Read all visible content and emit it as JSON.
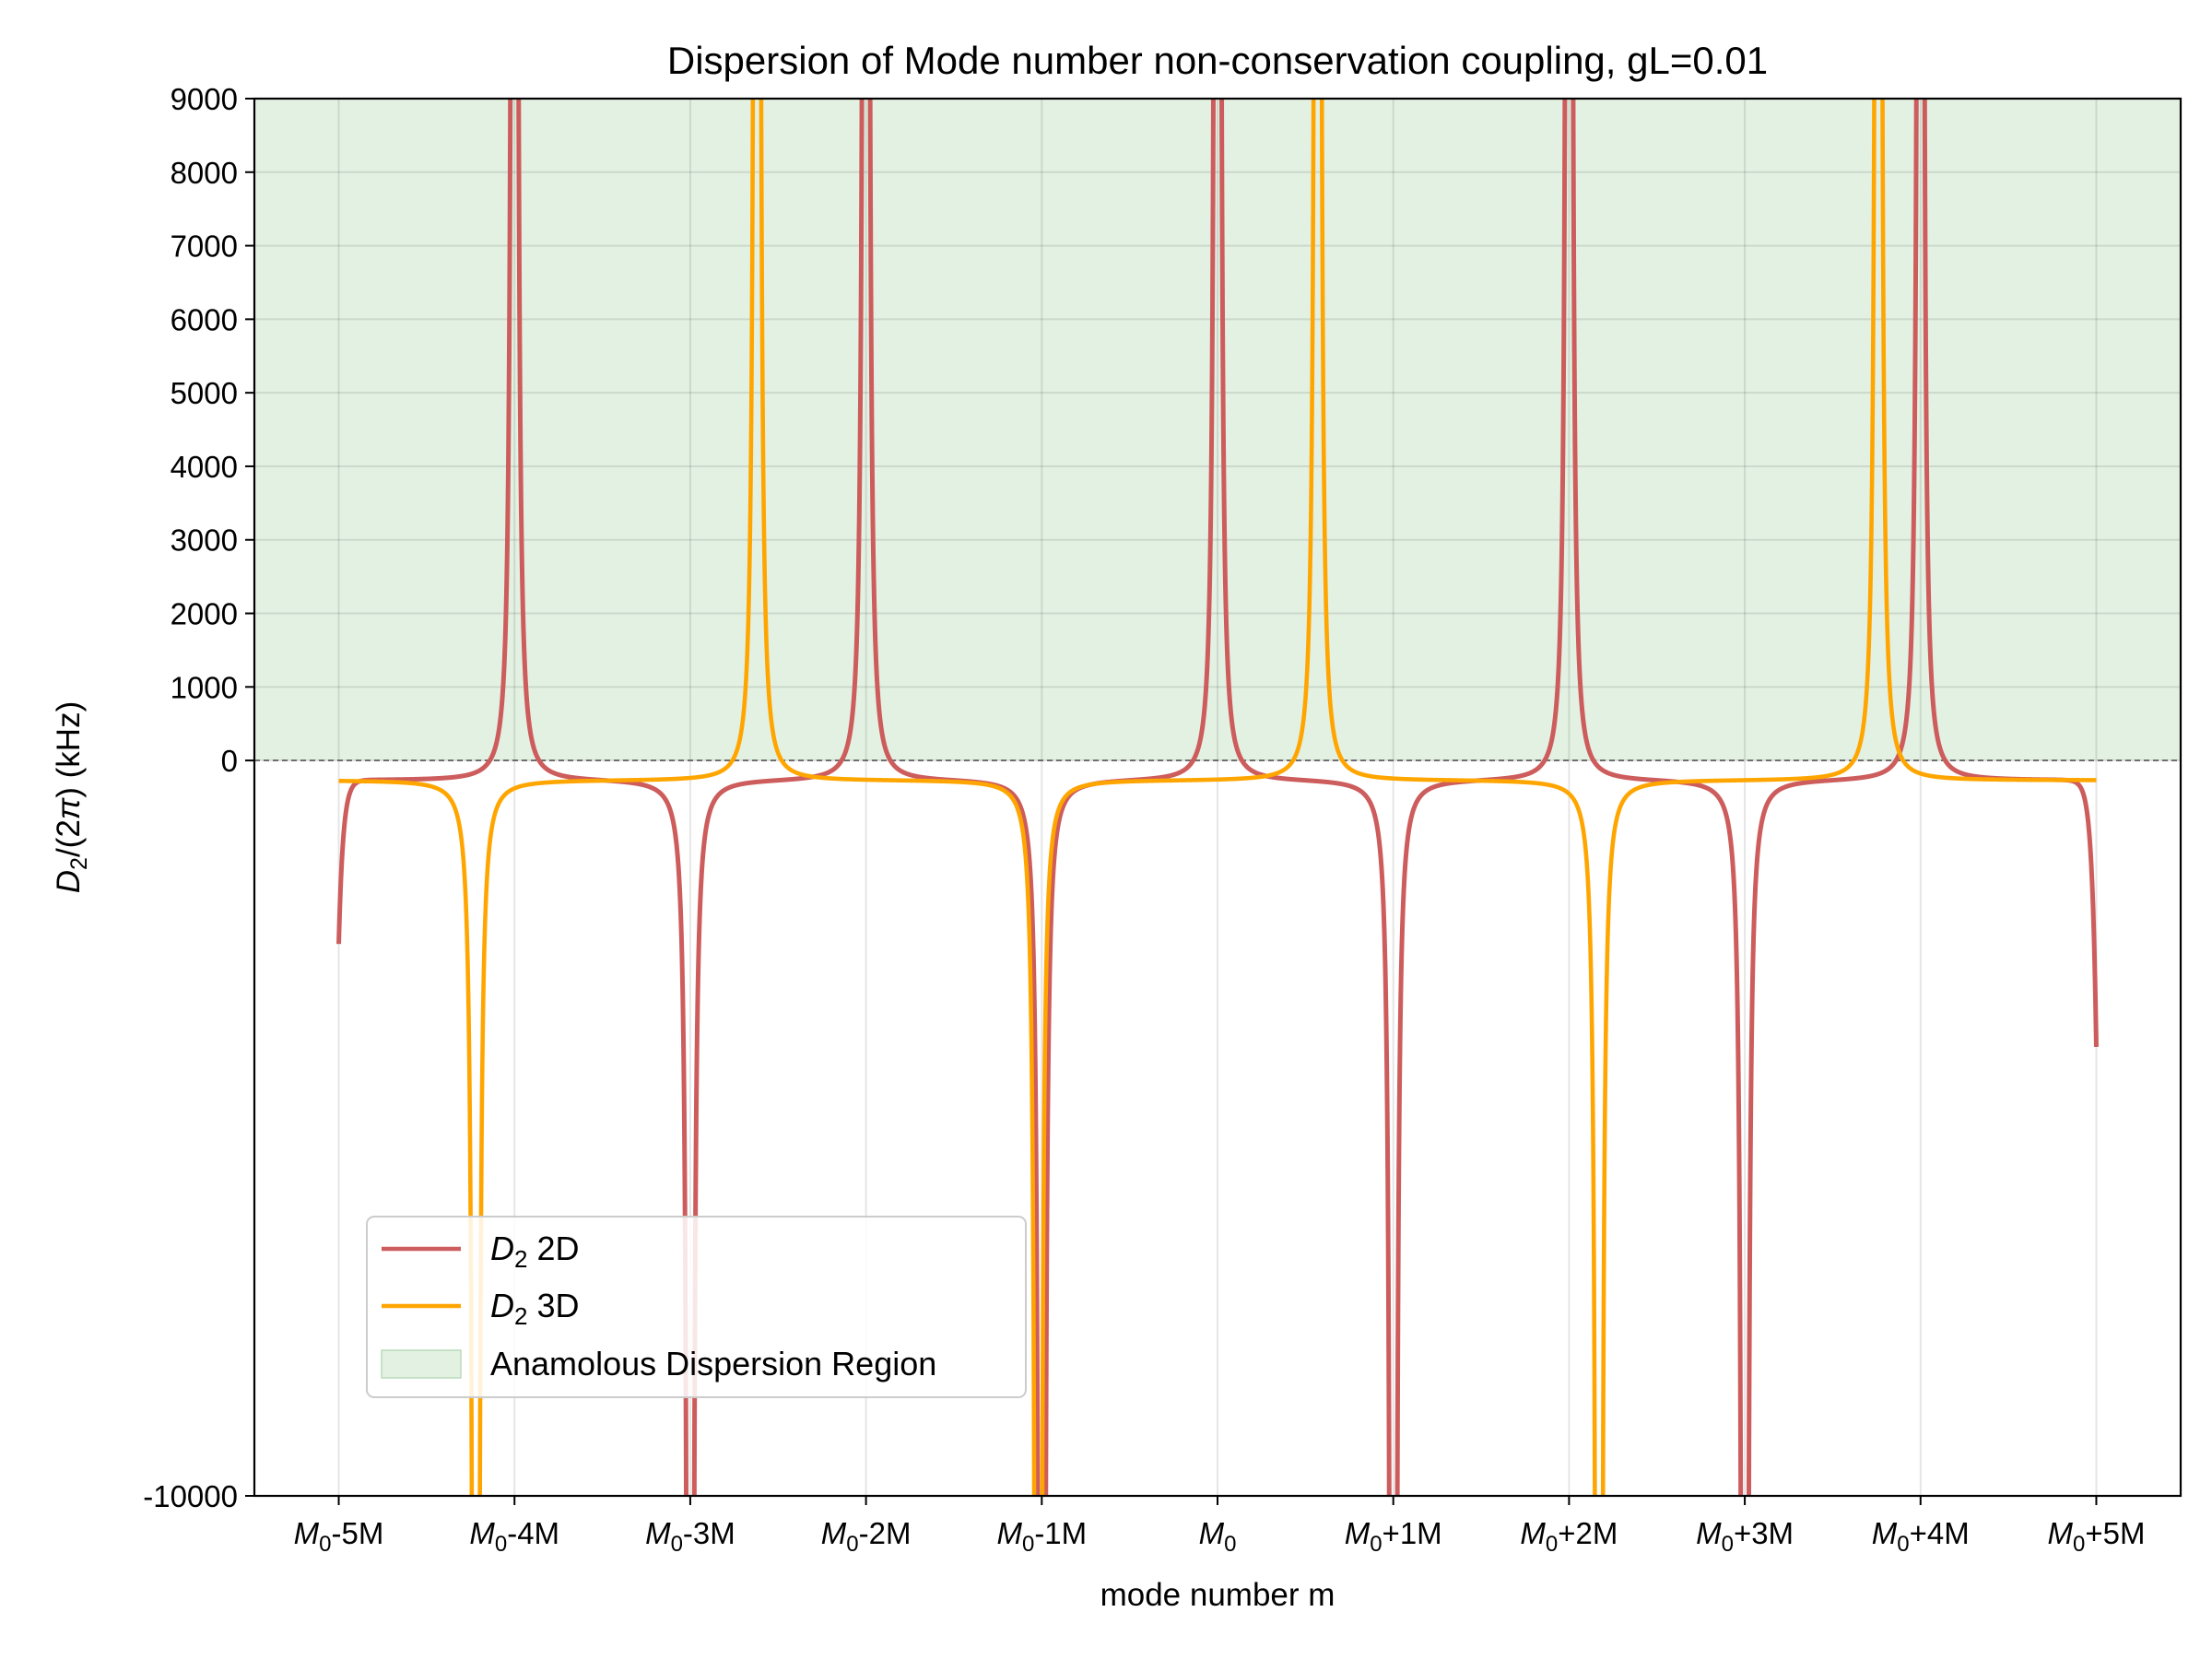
{
  "chart_data": {
    "type": "line",
    "title": "Dispersion of Mode number non-conservation coupling, gL=0.01",
    "xlabel": "mode number m",
    "ylabel_parts": [
      "D",
      "2",
      "/(2",
      "π",
      ") (kHz)"
    ],
    "ylim": [
      -10000,
      9000
    ],
    "xlim": [
      -5.48,
      5.48
    ],
    "grid": true,
    "legend_position": "lower-left",
    "y_ticks": [
      {
        "value": 9000,
        "label": "9000"
      },
      {
        "value": 8000,
        "label": "8000"
      },
      {
        "value": 7000,
        "label": "7000"
      },
      {
        "value": 6000,
        "label": "6000"
      },
      {
        "value": 5000,
        "label": "5000"
      },
      {
        "value": 4000,
        "label": "4000"
      },
      {
        "value": 3000,
        "label": "3000"
      },
      {
        "value": 2000,
        "label": "2000"
      },
      {
        "value": 1000,
        "label": "1000"
      },
      {
        "value": 0,
        "label": "0"
      },
      {
        "value": -10000,
        "label": "-10000"
      }
    ],
    "x_ticks": [
      {
        "value": -5,
        "base": "M",
        "sub": "0",
        "suffix": "-5M"
      },
      {
        "value": -4,
        "base": "M",
        "sub": "0",
        "suffix": "-4M"
      },
      {
        "value": -3,
        "base": "M",
        "sub": "0",
        "suffix": "-3M"
      },
      {
        "value": -2,
        "base": "M",
        "sub": "0",
        "suffix": "-2M"
      },
      {
        "value": -1,
        "base": "M",
        "sub": "0",
        "suffix": "-1M"
      },
      {
        "value": 0,
        "base": "M",
        "sub": "0",
        "suffix": ""
      },
      {
        "value": 1,
        "base": "M",
        "sub": "0",
        "suffix": "+1M"
      },
      {
        "value": 2,
        "base": "M",
        "sub": "0",
        "suffix": "+2M"
      },
      {
        "value": 3,
        "base": "M",
        "sub": "0",
        "suffix": "+3M"
      },
      {
        "value": 4,
        "base": "M",
        "sub": "0",
        "suffix": "+4M"
      },
      {
        "value": 5,
        "base": "M",
        "sub": "0",
        "suffix": "+5M"
      }
    ],
    "anomalous_region": {
      "y_from": 0,
      "y_to": 9000,
      "color": "#e3f1e3",
      "edge_color": "#b9dbb9"
    },
    "series": [
      {
        "legend_base": "D",
        "legend_sub": "2",
        "legend_suffix": " 2D",
        "color": "#cd5c5c",
        "x_range": [
          -5.0,
          5.0
        ],
        "baseline": -270,
        "endpoints": [
          {
            "x": -5.0,
            "y": -2500
          },
          {
            "x": 5.0,
            "y": -3900
          }
        ],
        "up_spikes": [
          -4.0,
          -2.0,
          0.0,
          2.0,
          4.0
        ],
        "down_spikes": [
          -3.0,
          -1.0,
          1.0,
          3.0
        ]
      },
      {
        "legend_base": "D",
        "legend_sub": "2",
        "legend_suffix": " 3D",
        "color": "#ffa500",
        "x_range": [
          -5.0,
          5.0
        ],
        "baseline": -270,
        "endpoints": [],
        "up_spikes": [
          -2.62,
          0.57,
          3.76
        ],
        "down_spikes": [
          -4.22,
          -1.02,
          2.17
        ]
      }
    ],
    "legend_region_label": "Anamolous Dispersion Region"
  }
}
